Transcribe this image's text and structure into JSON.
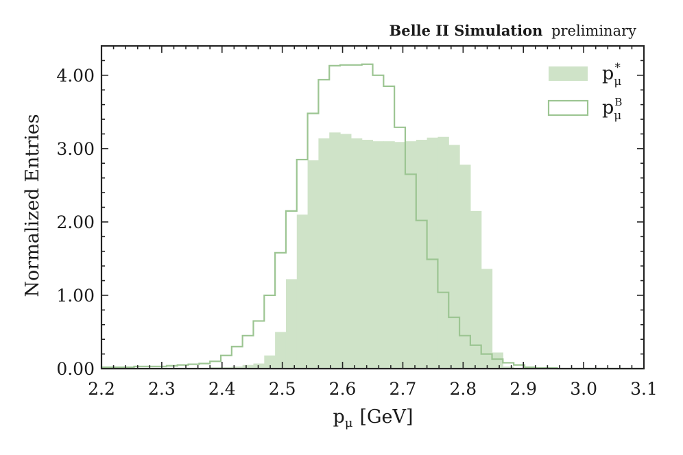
{
  "chart_data": {
    "type": "histogram",
    "annotation_bold": "Belle II Simulation",
    "annotation_normal": "preliminary",
    "xlabel_main": "p",
    "xlabel_sub": "μ",
    "xlabel_unit": "[GeV]",
    "ylabel": "Normalized Entries",
    "xlim": [
      2.2,
      3.1
    ],
    "ylim": [
      0.0,
      4.4
    ],
    "x_ticks": [
      2.2,
      2.3,
      2.4,
      2.5,
      2.6,
      2.7,
      2.8,
      2.9,
      3.0,
      3.1
    ],
    "x_tick_labels": [
      "2.2",
      "2.3",
      "2.4",
      "2.5",
      "2.6",
      "2.7",
      "2.8",
      "2.9",
      "3.0",
      "3.1"
    ],
    "y_ticks": [
      0.0,
      1.0,
      2.0,
      3.0,
      4.0
    ],
    "y_tick_labels": [
      "0.00",
      "1.00",
      "2.00",
      "3.00",
      "4.00"
    ],
    "bin_edges_start": 2.2,
    "bin_width": 0.018,
    "fill_color": "#cfe3c8",
    "line_color": "#9cc592",
    "series": [
      {
        "name": "p_mu_star",
        "legend_main": "p",
        "legend_sub": "μ",
        "legend_sup": "*",
        "style": "filled",
        "values": [
          0.01,
          0.01,
          0.01,
          0.01,
          0.01,
          0.01,
          0.01,
          0.01,
          0.01,
          0.01,
          0.02,
          0.02,
          0.03,
          0.05,
          0.07,
          0.18,
          0.5,
          1.22,
          2.1,
          2.84,
          3.14,
          3.22,
          3.2,
          3.14,
          3.12,
          3.1,
          3.1,
          3.09,
          3.1,
          3.12,
          3.15,
          3.16,
          3.05,
          2.78,
          2.15,
          1.36,
          0.22,
          0.03,
          0.01,
          0.0,
          0.0,
          0.0,
          0.0,
          0.0,
          0.0,
          0.0,
          0.0,
          0.0,
          0.0,
          0.0
        ]
      },
      {
        "name": "p_mu_B",
        "legend_main": "p",
        "legend_sub": "μ",
        "legend_sup": "B",
        "style": "step",
        "values": [
          0.02,
          0.02,
          0.02,
          0.03,
          0.03,
          0.03,
          0.04,
          0.05,
          0.06,
          0.07,
          0.1,
          0.18,
          0.3,
          0.45,
          0.65,
          1.0,
          1.58,
          2.15,
          2.85,
          3.48,
          3.94,
          4.13,
          4.14,
          4.14,
          4.15,
          4.0,
          3.85,
          3.29,
          2.65,
          2.02,
          1.49,
          1.04,
          0.7,
          0.45,
          0.32,
          0.2,
          0.13,
          0.08,
          0.05,
          0.02,
          0.01,
          0.01,
          0.0,
          0.0,
          0.0,
          0.0,
          0.0,
          0.0,
          0.0,
          0.0
        ]
      }
    ],
    "legend_position": "top-right"
  }
}
